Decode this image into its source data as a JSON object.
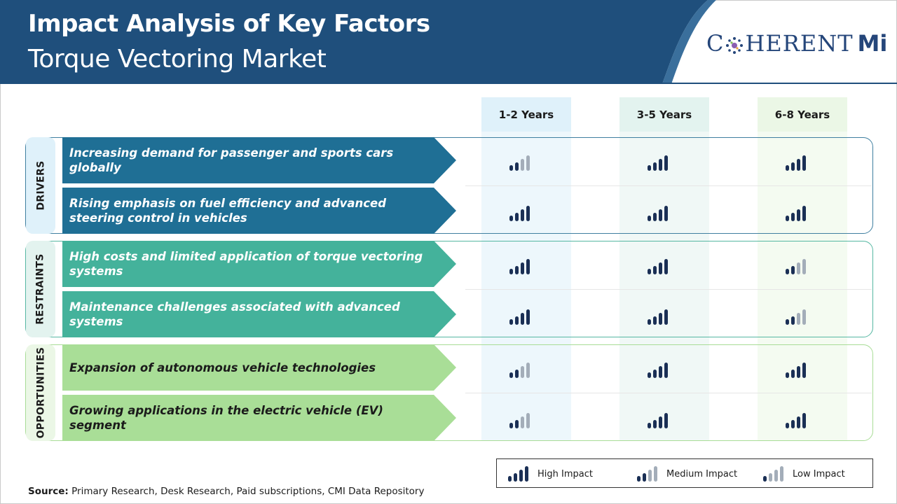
{
  "header": {
    "title": "Impact Analysis of Key Factors",
    "subtitle": "Torque Vectoring Market",
    "logo": {
      "text": "COHERENT",
      "suffix": "Mi"
    }
  },
  "columns": [
    "1-2 Years",
    "3-5 Years",
    "6-8 Years"
  ],
  "column_colors": [
    "#dff1fa",
    "#e3f3ef",
    "#ebf7e6"
  ],
  "groups": [
    {
      "label": "DRIVERS",
      "color": "#1f6f95",
      "side_bg": "#dff1fa",
      "border": "#3f7fa0",
      "rows": [
        {
          "text": "Increasing demand for passenger and sports cars globally",
          "impact": [
            "medium",
            "high",
            "high"
          ]
        },
        {
          "text": "Rising emphasis on fuel efficiency and advanced steering control in vehicles",
          "impact": [
            "high",
            "high",
            "high"
          ]
        }
      ]
    },
    {
      "label": "RESTRAINTS",
      "color": "#44b29b",
      "side_bg": "#e3f3ef",
      "border": "#55b7a2",
      "rows": [
        {
          "text": "High costs and limited application of torque vectoring systems",
          "impact": [
            "high",
            "high",
            "medium"
          ]
        },
        {
          "text": "Maintenance challenges associated with advanced systems",
          "impact": [
            "high",
            "high",
            "medium"
          ]
        }
      ]
    },
    {
      "label": "OPPORTUNITIES",
      "color": "#a9de97",
      "side_bg": "#ebf7e6",
      "border": "#a8dc96",
      "rows": [
        {
          "text": "Expansion of autonomous vehicle technologies",
          "impact": [
            "medium",
            "high",
            "high"
          ]
        },
        {
          "text": "Growing applications in the electric vehicle (EV) segment",
          "impact": [
            "medium",
            "high",
            "high"
          ]
        }
      ]
    }
  ],
  "legend": [
    {
      "key": "high",
      "label": "High Impact"
    },
    {
      "key": "medium",
      "label": "Medium Impact"
    },
    {
      "key": "low",
      "label": "Low Impact"
    }
  ],
  "colors": {
    "bar_dark": "#1a2f55",
    "bar_light": "#a3adb9",
    "header_bg": "#1f4f7c"
  },
  "source": {
    "label": "Source:",
    "text": "Primary Research, Desk Research, Paid subscriptions, CMI Data Repository"
  }
}
